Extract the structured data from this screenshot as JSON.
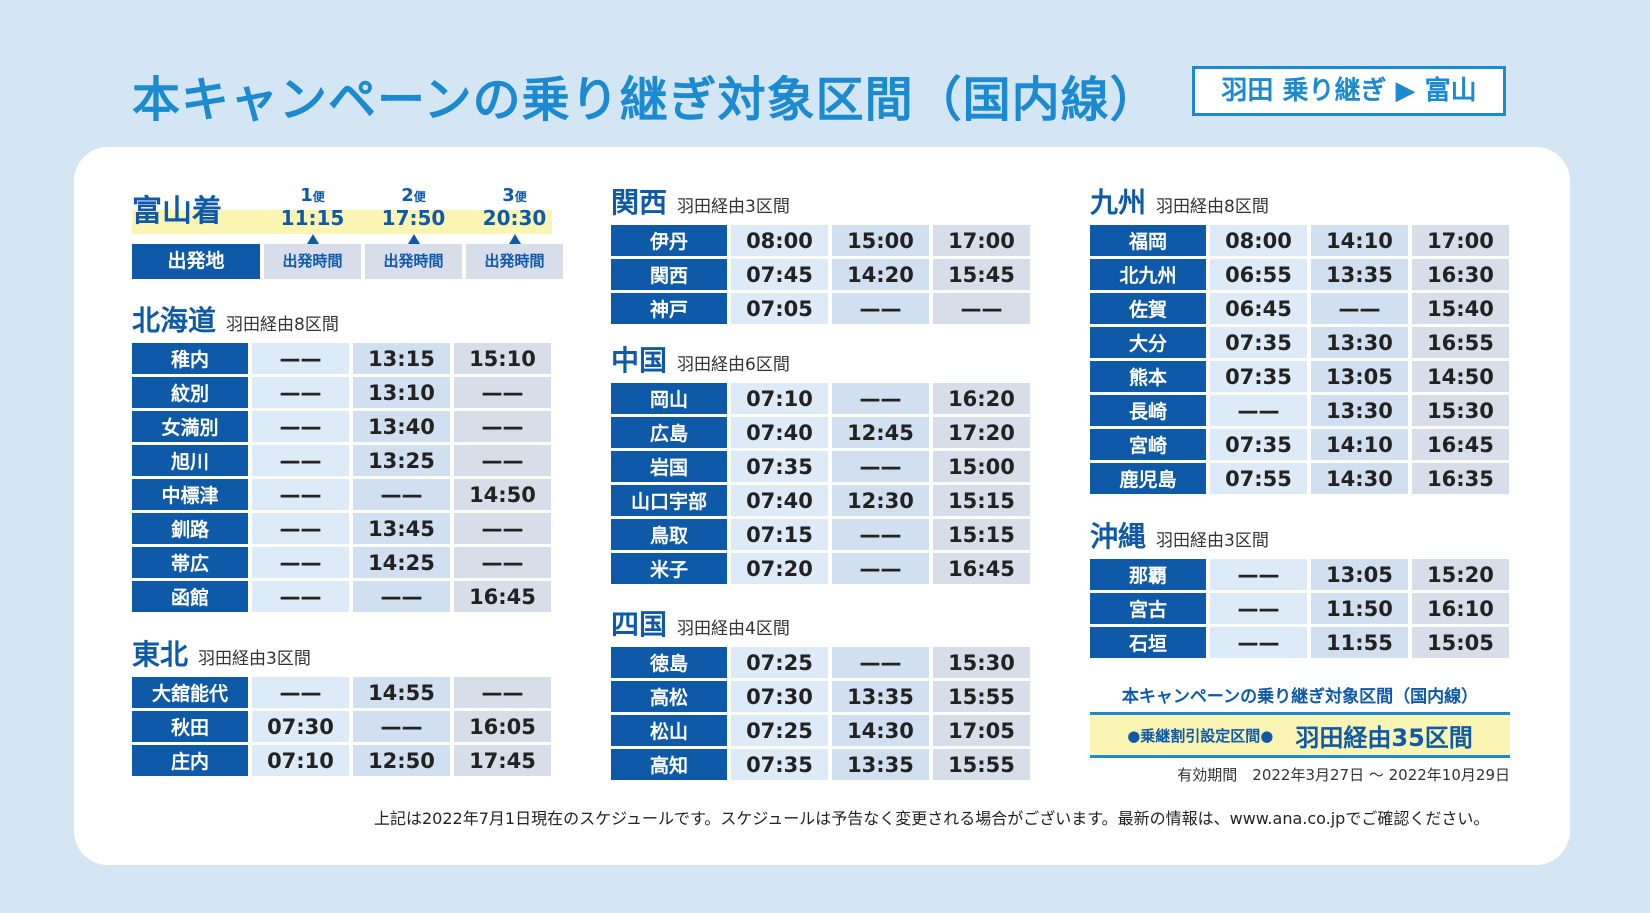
{
  "header": {
    "title": "本キャンペーンの乗り継ぎ対象区間（国内線）",
    "route": "羽田 乗り継ぎ ▶ 富山"
  },
  "legend": {
    "destination": "富山着",
    "flights": [
      {
        "num": "1",
        "suffix": "便",
        "time": "11:15"
      },
      {
        "num": "2",
        "suffix": "便",
        "time": "17:50"
      },
      {
        "num": "3",
        "suffix": "便",
        "time": "20:30"
      }
    ],
    "depart_label": "出発地",
    "depart_time_label": "出発時間"
  },
  "sections": [
    {
      "name": "北海道",
      "sub": "羽田経由8区間",
      "rows": [
        {
          "city": "稚内",
          "times": [
            "——",
            "13:15",
            "15:10"
          ]
        },
        {
          "city": "紋別",
          "times": [
            "——",
            "13:10",
            "——"
          ]
        },
        {
          "city": "女満別",
          "times": [
            "——",
            "13:40",
            "——"
          ]
        },
        {
          "city": "旭川",
          "times": [
            "——",
            "13:25",
            "——"
          ]
        },
        {
          "city": "中標津",
          "times": [
            "——",
            "——",
            "14:50"
          ]
        },
        {
          "city": "釧路",
          "times": [
            "——",
            "13:45",
            "——"
          ]
        },
        {
          "city": "帯広",
          "times": [
            "——",
            "14:25",
            "——"
          ]
        },
        {
          "city": "函館",
          "times": [
            "——",
            "——",
            "16:45"
          ]
        }
      ]
    },
    {
      "name": "東北",
      "sub": "羽田経由3区間",
      "rows": [
        {
          "city": "大舘能代",
          "times": [
            "——",
            "14:55",
            "——"
          ]
        },
        {
          "city": "秋田",
          "times": [
            "07:30",
            "——",
            "16:05"
          ]
        },
        {
          "city": "庄内",
          "times": [
            "07:10",
            "12:50",
            "17:45"
          ]
        }
      ]
    },
    {
      "name": "関西",
      "sub": "羽田経由3区間",
      "rows": [
        {
          "city": "伊丹",
          "times": [
            "08:00",
            "15:00",
            "17:00"
          ]
        },
        {
          "city": "関西",
          "times": [
            "07:45",
            "14:20",
            "15:45"
          ]
        },
        {
          "city": "神戸",
          "times": [
            "07:05",
            "——",
            "——"
          ]
        }
      ]
    },
    {
      "name": "中国",
      "sub": "羽田経由6区間",
      "rows": [
        {
          "city": "岡山",
          "times": [
            "07:10",
            "——",
            "16:20"
          ]
        },
        {
          "city": "広島",
          "times": [
            "07:40",
            "12:45",
            "17:20"
          ]
        },
        {
          "city": "岩国",
          "times": [
            "07:35",
            "——",
            "15:00"
          ]
        },
        {
          "city": "山口宇部",
          "times": [
            "07:40",
            "12:30",
            "15:15"
          ]
        },
        {
          "city": "鳥取",
          "times": [
            "07:15",
            "——",
            "15:15"
          ]
        },
        {
          "city": "米子",
          "times": [
            "07:20",
            "——",
            "16:45"
          ]
        }
      ]
    },
    {
      "name": "四国",
      "sub": "羽田経由4区間",
      "rows": [
        {
          "city": "徳島",
          "times": [
            "07:25",
            "——",
            "15:30"
          ]
        },
        {
          "city": "高松",
          "times": [
            "07:30",
            "13:35",
            "15:55"
          ]
        },
        {
          "city": "松山",
          "times": [
            "07:25",
            "14:30",
            "17:05"
          ]
        },
        {
          "city": "高知",
          "times": [
            "07:35",
            "13:35",
            "15:55"
          ]
        }
      ]
    },
    {
      "name": "九州",
      "sub": "羽田経由8区間",
      "rows": [
        {
          "city": "福岡",
          "times": [
            "08:00",
            "14:10",
            "17:00"
          ]
        },
        {
          "city": "北九州",
          "times": [
            "06:55",
            "13:35",
            "16:30"
          ]
        },
        {
          "city": "佐賀",
          "times": [
            "06:45",
            "——",
            "15:40"
          ]
        },
        {
          "city": "大分",
          "times": [
            "07:35",
            "13:30",
            "16:55"
          ]
        },
        {
          "city": "熊本",
          "times": [
            "07:35",
            "13:05",
            "14:50"
          ]
        },
        {
          "city": "長崎",
          "times": [
            "——",
            "13:30",
            "15:30"
          ]
        },
        {
          "city": "宮崎",
          "times": [
            "07:35",
            "14:10",
            "16:45"
          ]
        },
        {
          "city": "鹿児島",
          "times": [
            "07:55",
            "14:30",
            "16:35"
          ]
        }
      ]
    },
    {
      "name": "沖縄",
      "sub": "羽田経由3区間",
      "rows": [
        {
          "city": "那覇",
          "times": [
            "——",
            "13:05",
            "15:20"
          ]
        },
        {
          "city": "宮古",
          "times": [
            "——",
            "11:50",
            "16:10"
          ]
        },
        {
          "city": "石垣",
          "times": [
            "——",
            "11:55",
            "15:05"
          ]
        }
      ]
    }
  ],
  "summary": {
    "title": "本キャンペーンの乗り継ぎ対象区間（国内線）",
    "label": "●乗継割引設定区間●",
    "value": "羽田経由35区間",
    "validity": "有効期間　2022年3月27日 ～ 2022年10月29日"
  },
  "footnote": "上記は2022年7月1日現在のスケジュールです。スケジュールは予告なく変更される場合がございます。最新の情報は、www.ana.co.jpでご確認ください。"
}
